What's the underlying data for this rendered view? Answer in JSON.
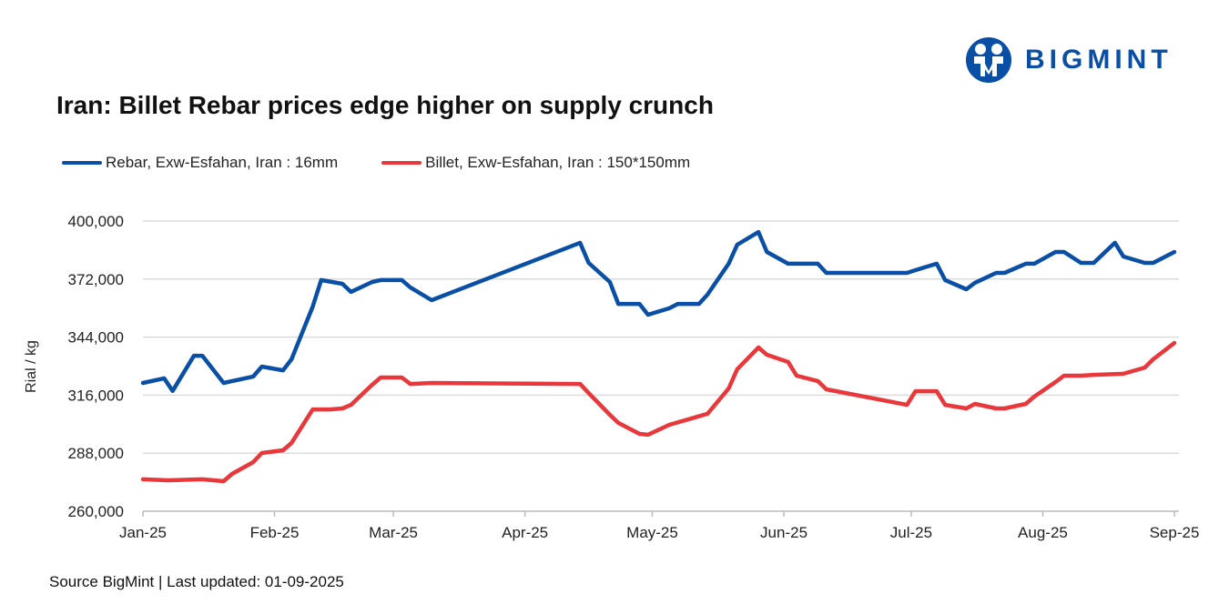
{
  "brand": {
    "name": "BIGMINT",
    "color": "#0a4fa6"
  },
  "source": "Source BigMint | Last updated: 01-09-2025",
  "chart_data": {
    "type": "line",
    "title": "Iran: Billet Rebar prices edge higher on supply crunch",
    "xlabel": "",
    "ylabel": "Rial / kg",
    "ylim": [
      260000,
      400000
    ],
    "yticks": [
      260000,
      288000,
      316000,
      344000,
      372000,
      400000
    ],
    "ytick_labels": [
      "260,000",
      "288,000",
      "316,000",
      "344,000",
      "372,000",
      "400,000"
    ],
    "xlim": [
      "2025-01-01",
      "2025-09-01"
    ],
    "xticks": [
      "2025-01-01",
      "2025-02-01",
      "2025-03-01",
      "2025-04-01",
      "2025-05-01",
      "2025-06-01",
      "2025-07-01",
      "2025-08-01",
      "2025-09-01"
    ],
    "xtick_labels": [
      "Jan-25",
      "Feb-25",
      "Mar-25",
      "Apr-25",
      "May-25",
      "Jun-25",
      "Jul-25",
      "Aug-25",
      "Sep-25"
    ],
    "grid": "horizontal",
    "legend": "top-left",
    "series": [
      {
        "name": "Rebar, Exw-Esfahan, Iran : 16mm",
        "color": "#0a4fa6",
        "points": [
          [
            "2025-01-01",
            321900
          ],
          [
            "2025-01-06",
            324100
          ],
          [
            "2025-01-08",
            318000
          ],
          [
            "2025-01-13",
            335000
          ],
          [
            "2025-01-15",
            335000
          ],
          [
            "2025-01-20",
            321900
          ],
          [
            "2025-01-27",
            325000
          ],
          [
            "2025-01-29",
            329800
          ],
          [
            "2025-02-03",
            328000
          ],
          [
            "2025-02-05",
            333300
          ],
          [
            "2025-02-10",
            358700
          ],
          [
            "2025-02-12",
            371500
          ],
          [
            "2025-02-17",
            369700
          ],
          [
            "2025-02-19",
            365800
          ],
          [
            "2025-02-24",
            370600
          ],
          [
            "2025-02-26",
            371500
          ],
          [
            "2025-03-03",
            371500
          ],
          [
            "2025-03-05",
            368000
          ],
          [
            "2025-03-10",
            361800
          ],
          [
            "2025-04-14",
            389500
          ],
          [
            "2025-04-16",
            379800
          ],
          [
            "2025-04-21",
            370600
          ],
          [
            "2025-04-23",
            360000
          ],
          [
            "2025-04-28",
            360000
          ],
          [
            "2025-04-30",
            354800
          ],
          [
            "2025-05-05",
            357900
          ],
          [
            "2025-05-07",
            360000
          ],
          [
            "2025-05-12",
            360000
          ],
          [
            "2025-05-14",
            364500
          ],
          [
            "2025-05-19",
            379400
          ],
          [
            "2025-05-21",
            388600
          ],
          [
            "2025-05-26",
            394700
          ],
          [
            "2025-05-28",
            385100
          ],
          [
            "2025-06-02",
            379400
          ],
          [
            "2025-06-09",
            379400
          ],
          [
            "2025-06-11",
            375000
          ],
          [
            "2025-06-30",
            375000
          ],
          [
            "2025-07-02",
            376300
          ],
          [
            "2025-07-07",
            379400
          ],
          [
            "2025-07-09",
            371500
          ],
          [
            "2025-07-14",
            367100
          ],
          [
            "2025-07-16",
            370200
          ],
          [
            "2025-07-21",
            375000
          ],
          [
            "2025-07-23",
            375000
          ],
          [
            "2025-07-28",
            379400
          ],
          [
            "2025-07-30",
            379400
          ],
          [
            "2025-08-04",
            385100
          ],
          [
            "2025-08-06",
            385100
          ],
          [
            "2025-08-10",
            379800
          ],
          [
            "2025-08-13",
            379800
          ],
          [
            "2025-08-18",
            389500
          ],
          [
            "2025-08-20",
            382900
          ],
          [
            "2025-08-25",
            379800
          ],
          [
            "2025-08-27",
            379800
          ],
          [
            "2025-09-01",
            385100
          ]
        ]
      },
      {
        "name": "Billet, Exw-Esfahan, Iran : 150*150mm",
        "color": "#e8383b",
        "points": [
          [
            "2025-01-01",
            275400
          ],
          [
            "2025-01-07",
            274900
          ],
          [
            "2025-01-15",
            275400
          ],
          [
            "2025-01-20",
            274500
          ],
          [
            "2025-01-22",
            278000
          ],
          [
            "2025-01-27",
            283700
          ],
          [
            "2025-01-29",
            288100
          ],
          [
            "2025-02-03",
            289400
          ],
          [
            "2025-02-05",
            292900
          ],
          [
            "2025-02-10",
            309100
          ],
          [
            "2025-02-14",
            309100
          ],
          [
            "2025-02-17",
            309600
          ],
          [
            "2025-02-19",
            311300
          ],
          [
            "2025-02-24",
            321000
          ],
          [
            "2025-02-26",
            324500
          ],
          [
            "2025-03-03",
            324500
          ],
          [
            "2025-03-05",
            321400
          ],
          [
            "2025-03-10",
            321900
          ],
          [
            "2025-04-14",
            321400
          ],
          [
            "2025-04-16",
            317000
          ],
          [
            "2025-04-21",
            306500
          ],
          [
            "2025-04-23",
            302600
          ],
          [
            "2025-04-28",
            297300
          ],
          [
            "2025-04-30",
            296900
          ],
          [
            "2025-05-05",
            301700
          ],
          [
            "2025-05-14",
            307000
          ],
          [
            "2025-05-19",
            319200
          ],
          [
            "2025-05-21",
            328500
          ],
          [
            "2025-05-26",
            339000
          ],
          [
            "2025-05-28",
            335500
          ],
          [
            "2025-06-02",
            332000
          ],
          [
            "2025-06-04",
            325400
          ],
          [
            "2025-06-09",
            322800
          ],
          [
            "2025-06-11",
            318800
          ],
          [
            "2025-06-30",
            311300
          ],
          [
            "2025-07-02",
            317900
          ],
          [
            "2025-07-07",
            317900
          ],
          [
            "2025-07-09",
            311300
          ],
          [
            "2025-07-14",
            309600
          ],
          [
            "2025-07-16",
            311800
          ],
          [
            "2025-07-21",
            309600
          ],
          [
            "2025-07-23",
            309600
          ],
          [
            "2025-07-28",
            311800
          ],
          [
            "2025-07-30",
            315300
          ],
          [
            "2025-08-04",
            322300
          ],
          [
            "2025-08-06",
            325400
          ],
          [
            "2025-08-10",
            325400
          ],
          [
            "2025-08-13",
            325800
          ],
          [
            "2025-08-20",
            326300
          ],
          [
            "2025-08-25",
            329300
          ],
          [
            "2025-08-27",
            333300
          ],
          [
            "2025-09-01",
            341200
          ]
        ]
      }
    ]
  }
}
